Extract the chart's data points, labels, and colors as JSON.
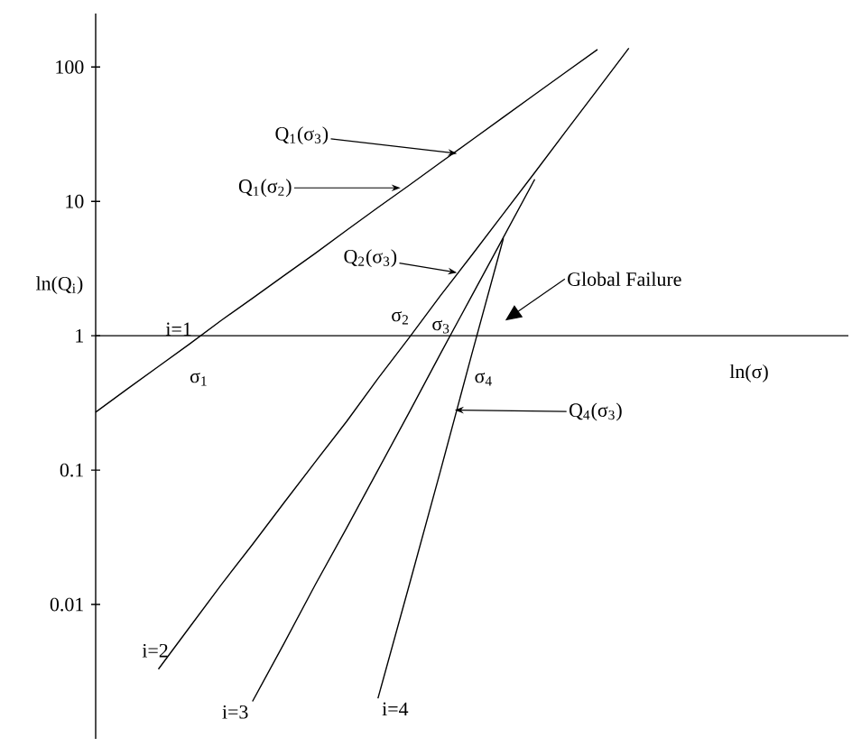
{
  "chart_data": {
    "type": "line",
    "xlabel": "ln(σ)",
    "ylabel": "ln(Q$_{i}$)",
    "log": "y",
    "ylim": [
      0.001,
      250
    ],
    "yticks": [
      100,
      10,
      1,
      0.1,
      0.01
    ],
    "tick_labels": "y",
    "categories": [
      null,
      null,
      null,
      null,
      null,
      null,
      null,
      null,
      null,
      null,
      null,
      null,
      null,
      null,
      null,
      null,
      null,
      null,
      null,
      null,
      null,
      null,
      null,
      null,
      null
    ],
    "series": [
      {
        "name": "i=1",
        "color": "#000000",
        "values": [
          0.27,
          0.4,
          0.59,
          0.87,
          1.3,
          1.9,
          2.8,
          4.1,
          6.1,
          9.0,
          13.2,
          19.5,
          28.7,
          42.3,
          62.4,
          91.9,
          135,
          null,
          null,
          null,
          null,
          null,
          null,
          null,
          null
        ]
      },
      {
        "name": "i=2",
        "color": "#000000",
        "values": [
          null,
          null,
          0.0033,
          0.0068,
          0.014,
          0.028,
          0.057,
          0.115,
          0.23,
          0.48,
          0.97,
          2.0,
          4.0,
          8.1,
          16.4,
          33.4,
          67.8,
          138,
          null,
          null,
          null,
          null,
          null,
          null,
          null
        ]
      },
      {
        "name": "i=3",
        "color": "#000000",
        "values": [
          null,
          null,
          null,
          null,
          null,
          0.0019,
          0.0051,
          0.014,
          0.037,
          0.1,
          0.27,
          0.74,
          2.0,
          5.4,
          14.6,
          null,
          null,
          null,
          null,
          null,
          null,
          null,
          null,
          null,
          null
        ]
      },
      {
        "name": "i=4",
        "color": "#000000",
        "values": [
          null,
          null,
          null,
          null,
          null,
          null,
          null,
          null,
          null,
          0.002,
          0.014,
          0.1,
          0.74,
          5.3,
          null,
          null,
          null,
          null,
          null,
          null,
          null,
          null,
          null,
          null,
          null
        ]
      }
    ],
    "annotations": [
      "Q$_{1}$(σ$_{3}$)",
      "Q$_{1}$(σ$_{2}$)",
      "Q$_{2}$(σ$_{3}$)",
      "Q$_{4}$(σ$_{3}$)",
      "Global Failure",
      "σ$_{1}$",
      "σ$_{2}$",
      "σ$_{3}$",
      "σ$_{4}$"
    ]
  }
}
